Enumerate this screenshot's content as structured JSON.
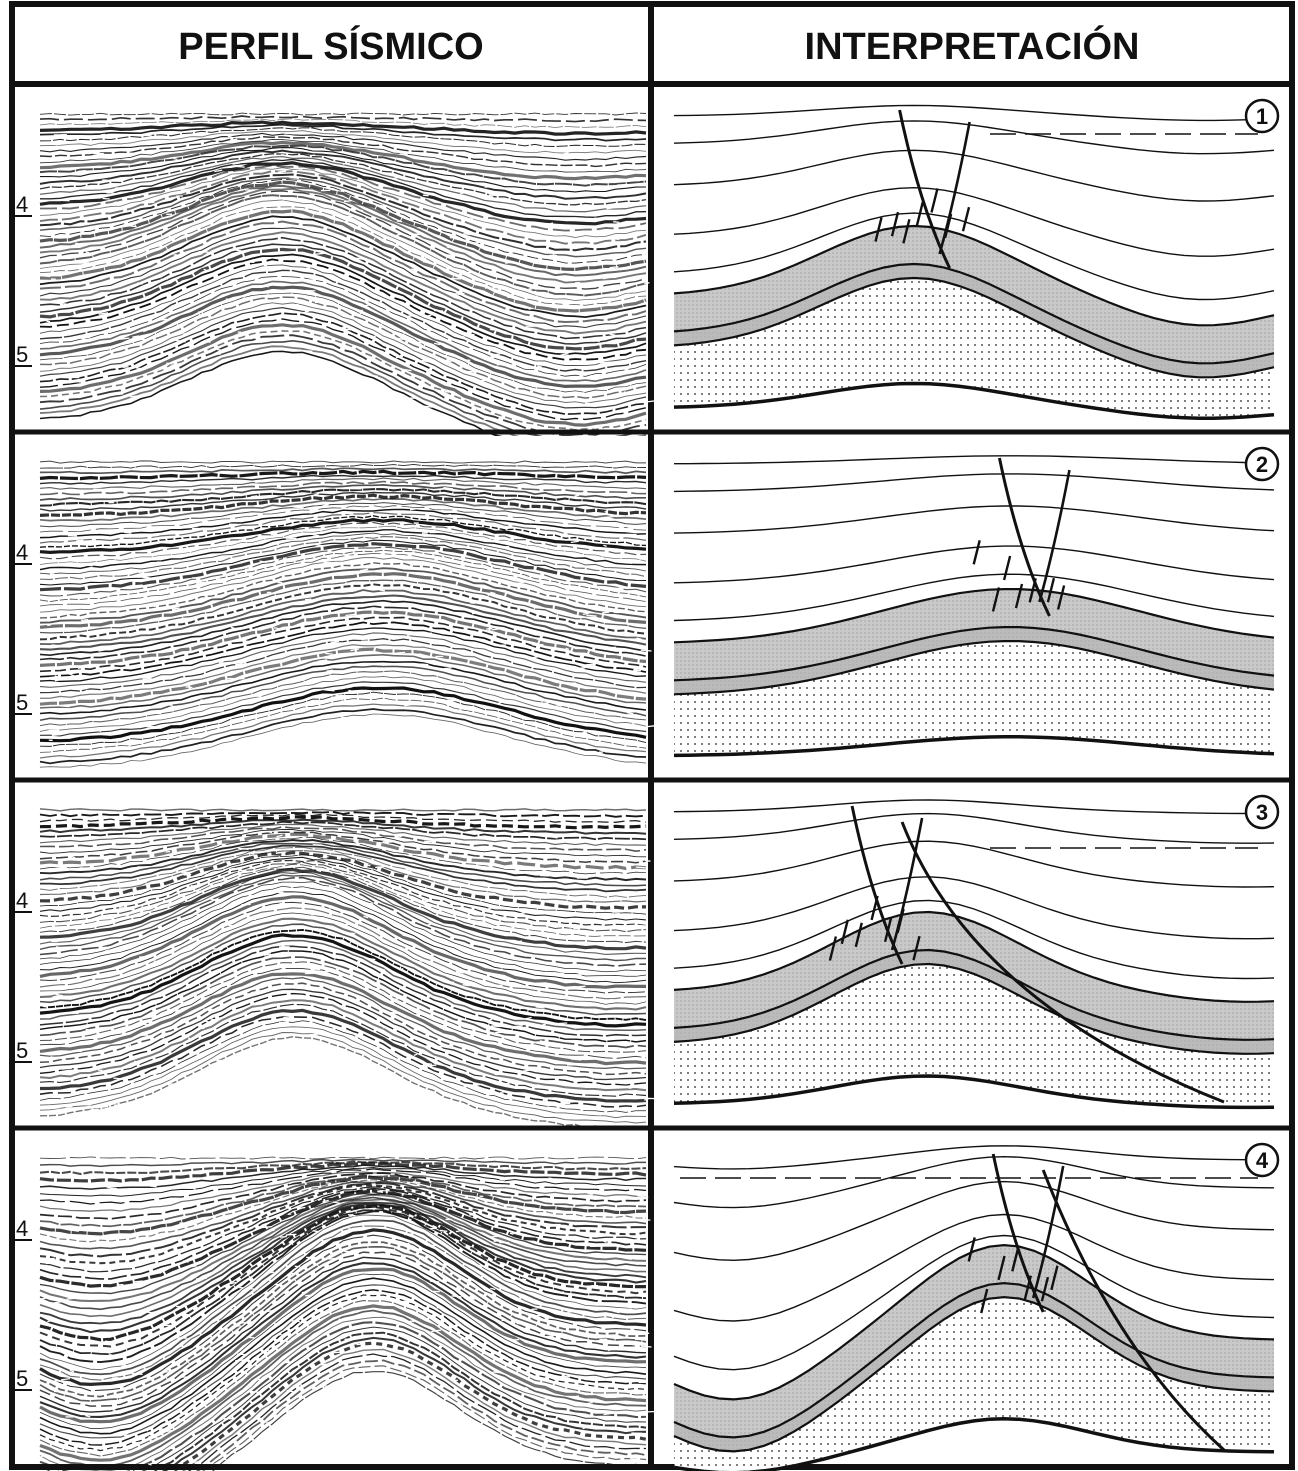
{
  "headers": {
    "left": "PERFIL SÍSMICO",
    "right": "INTERPRETACIÓN"
  },
  "panels": [
    {
      "number": "1",
      "ticks": [
        "4",
        "5"
      ],
      "has_dashed_reflector": true
    },
    {
      "number": "2",
      "ticks": [
        "4",
        "5"
      ],
      "has_dashed_reflector": false
    },
    {
      "number": "3",
      "ticks": [
        "4",
        "5"
      ],
      "has_dashed_reflector": true
    },
    {
      "number": "4",
      "ticks": [
        "4",
        "5"
      ],
      "has_dashed_reflector": true
    }
  ],
  "colors": {
    "ink": "#111111",
    "shaded_layer": "#c8c8c8",
    "dotted_layer_bg": "#ffffff",
    "paper": "#ffffff"
  }
}
